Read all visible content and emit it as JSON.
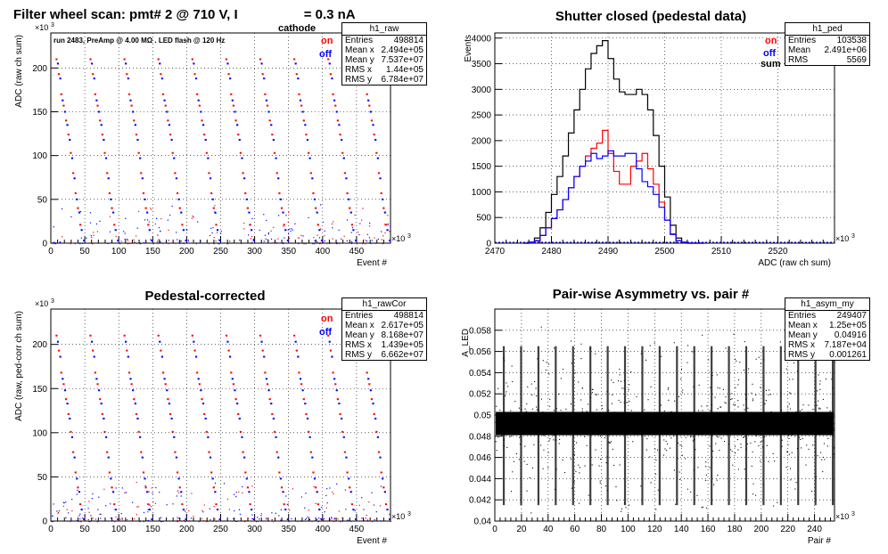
{
  "top_left_title": {
    "part1": "Filter wheel scan: pmt#   2 @   710 V, I",
    "sub": "cathode",
    "part2": "= 0.3 nA"
  },
  "panels": [
    {
      "id": "h1_raw",
      "title": "",
      "ylabel": "ADC (raw ch sum)",
      "xlabel": "Event #",
      "exp_y": "×10³",
      "exp_x": "×10³",
      "note": "run 2483, PreAmp @ 4.00 MΩ . LED flash @  120 Hz",
      "legend": [
        {
          "label": "on",
          "color": "#ff0000"
        },
        {
          "label": "off",
          "color": "#0000ff"
        }
      ],
      "stats": {
        "title": "h1_raw",
        "rows": [
          [
            "Entries",
            "498814"
          ],
          [
            "Mean x",
            "2.494e+05"
          ],
          [
            "Mean y",
            "7.537e+07"
          ],
          [
            "RMS x",
            "1.44e+05"
          ],
          [
            "RMS y",
            "6.784e+07"
          ]
        ]
      }
    },
    {
      "id": "h1_ped",
      "title": "Shutter closed (pedestal data)",
      "ylabel": "Events",
      "xlabel": "ADC (raw ch sum)",
      "exp_x": "×10³",
      "legend": [
        {
          "label": "on",
          "color": "#ff0000"
        },
        {
          "label": "off",
          "color": "#0000ff"
        },
        {
          "label": "sum",
          "color": "#000000"
        }
      ],
      "stats": {
        "title": "h1_ped",
        "rows": [
          [
            "Entries",
            "103538"
          ],
          [
            "Mean",
            "2.491e+06"
          ],
          [
            "RMS",
            "5569"
          ]
        ]
      }
    },
    {
      "id": "h1_rawCor",
      "title": "Pedestal-corrected",
      "ylabel": "ADC (raw, ped-corr ch sum)",
      "xlabel": "Event #",
      "exp_y": "×10³",
      "exp_x": "×10³",
      "legend": [
        {
          "label": "on",
          "color": "#ff0000"
        },
        {
          "label": "off",
          "color": "#0000ff"
        }
      ],
      "stats": {
        "title": "h1_rawCor",
        "rows": [
          [
            "Entries",
            "498814"
          ],
          [
            "Mean x",
            "2.617e+05"
          ],
          [
            "Mean y",
            "8.168e+07"
          ],
          [
            "RMS x",
            "1.439e+05"
          ],
          [
            "RMS y",
            "6.662e+07"
          ]
        ]
      }
    },
    {
      "id": "h1_asym_my",
      "title": "Pair-wise Asymmetry vs. pair #",
      "ylabel": "A_LED",
      "xlabel": "Pair #",
      "exp_x": "×10³",
      "stats": {
        "title": "h1_asym_my",
        "rows": [
          [
            "Entries",
            "249407"
          ],
          [
            "Mean x",
            "1.25e+05"
          ],
          [
            "Mean y",
            "0.04916"
          ],
          [
            "RMS x",
            "7.187e+04"
          ],
          [
            "RMS y",
            "0.001261"
          ]
        ]
      }
    }
  ],
  "chart_data": [
    {
      "type": "scatter",
      "name": "h1_raw",
      "xlim": [
        0,
        500
      ],
      "ylim": [
        0,
        240
      ],
      "xticks": [
        0,
        50,
        100,
        150,
        200,
        250,
        300,
        350,
        400,
        450
      ],
      "yticks": [
        0,
        50,
        100,
        150,
        200
      ],
      "grid": true,
      "legend_position": "top-right",
      "on_levels": [
        210,
        193,
        170,
        157,
        140,
        124,
        103,
        80,
        57,
        40,
        21
      ],
      "off_levels": [
        205,
        188,
        163,
        150,
        135,
        118,
        97,
        74,
        50,
        35,
        15,
        3
      ],
      "period": 50
    },
    {
      "type": "line",
      "name": "h1_ped",
      "xlim": [
        2470,
        2530
      ],
      "ylim": [
        0,
        4100
      ],
      "xticks": [
        2470,
        2480,
        2490,
        2500,
        2510,
        2520
      ],
      "yticks": [
        0,
        500,
        1000,
        1500,
        2000,
        2500,
        3000,
        3500,
        4000
      ],
      "grid": true,
      "legend_position": "top-right",
      "series": [
        {
          "name": "sum",
          "color": "#000000",
          "x": [
            2475,
            2476,
            2477,
            2478,
            2479,
            2480,
            2481,
            2482,
            2483,
            2484,
            2485,
            2486,
            2487,
            2488,
            2489,
            2490,
            2491,
            2492,
            2493,
            2494,
            2495,
            2496,
            2497,
            2498,
            2499,
            2500,
            2501,
            2502,
            2503,
            2504,
            2505,
            2506
          ],
          "y": [
            0,
            20,
            100,
            300,
            600,
            950,
            1300,
            1700,
            2150,
            2600,
            3000,
            3400,
            3700,
            3850,
            3950,
            3600,
            3200,
            2950,
            2900,
            2900,
            3000,
            2900,
            2600,
            2100,
            1500,
            900,
            350,
            100,
            20,
            0,
            0,
            0
          ]
        },
        {
          "name": "on",
          "color": "#ff0000",
          "x": [
            2475,
            2476,
            2477,
            2478,
            2479,
            2480,
            2481,
            2482,
            2483,
            2484,
            2485,
            2486,
            2487,
            2488,
            2489,
            2490,
            2491,
            2492,
            2493,
            2494,
            2495,
            2496,
            2497,
            2498,
            2499,
            2500,
            2501,
            2502,
            2503,
            2504,
            2505,
            2506
          ],
          "y": [
            0,
            10,
            40,
            150,
            300,
            480,
            650,
            850,
            1080,
            1300,
            1500,
            1700,
            1850,
            1950,
            2200,
            1750,
            1400,
            1150,
            1150,
            1500,
            1600,
            1750,
            1450,
            1150,
            800,
            450,
            180,
            50,
            10,
            0,
            0,
            0
          ]
        },
        {
          "name": "off",
          "color": "#0000ff",
          "x": [
            2475,
            2476,
            2477,
            2478,
            2479,
            2480,
            2481,
            2482,
            2483,
            2484,
            2485,
            2486,
            2487,
            2488,
            2489,
            2490,
            2491,
            2492,
            2493,
            2494,
            2495,
            2496,
            2497,
            2498,
            2499,
            2500,
            2501,
            2502,
            2503,
            2504,
            2505,
            2506
          ],
          "y": [
            0,
            10,
            50,
            150,
            300,
            480,
            650,
            850,
            1080,
            1300,
            1500,
            1600,
            1750,
            1650,
            1700,
            1800,
            1700,
            1700,
            1750,
            1750,
            1450,
            1200,
            1100,
            950,
            700,
            450,
            170,
            50,
            10,
            0,
            0,
            0
          ]
        }
      ]
    },
    {
      "type": "scatter",
      "name": "h1_rawCor",
      "xlim": [
        0,
        500
      ],
      "ylim": [
        0,
        240
      ],
      "xticks": [
        0,
        50,
        100,
        150,
        200,
        250,
        300,
        350,
        400,
        450
      ],
      "yticks": [
        0,
        50,
        100,
        150,
        200
      ],
      "grid": true,
      "legend_position": "top-right",
      "on_levels": [
        210,
        193,
        168,
        155,
        138,
        121,
        101,
        78,
        55,
        38,
        19
      ],
      "off_levels": [
        203,
        186,
        161,
        148,
        133,
        116,
        95,
        72,
        48,
        33,
        13,
        2
      ],
      "period": 50
    },
    {
      "type": "scatter",
      "name": "h1_asym_my",
      "xlim": [
        0,
        255
      ],
      "ylim": [
        0.04,
        0.06
      ],
      "xticks": [
        0,
        20,
        40,
        60,
        80,
        100,
        120,
        140,
        160,
        180,
        200,
        220,
        240
      ],
      "yticks": [
        0.04,
        0.042,
        0.044,
        0.046,
        0.048,
        0.05,
        0.052,
        0.054,
        0.056,
        0.058
      ],
      "grid": true,
      "band_center": 0.0492,
      "band_width": 0.0022,
      "spike_period": 13
    }
  ]
}
